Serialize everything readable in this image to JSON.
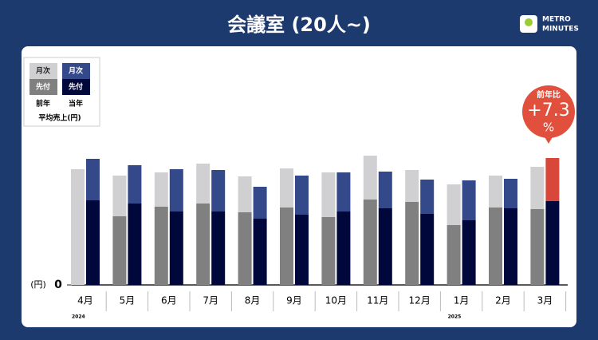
{
  "chart_data": {
    "type": "bar",
    "title": "会議室 (20人~)",
    "logo": [
      "METRO",
      "MINUTES"
    ],
    "legend": {
      "columns": [
        "前年",
        "当年"
      ],
      "title": "平均売上(円)"
    },
    "categories": [
      "4月",
      "5月",
      "6月",
      "7月",
      "8月",
      "9月",
      "10月",
      "11月",
      "12月",
      "1月",
      "2月",
      "3月"
    ],
    "year_labels": [
      "2024",
      null,
      null,
      null,
      null,
      null,
      null,
      null,
      null,
      "2025",
      null,
      null
    ],
    "y_unit": "(円)",
    "ylim": [
      0,
      170
    ],
    "yticks": [
      0
    ],
    "series": [
      {
        "name": "前年",
        "segments": [
          {
            "name": "先付",
            "color": "#808080",
            "values": [
              0,
              86,
              98,
              102,
              91,
              97,
              85,
              107,
              104,
              75,
              97,
              95
            ]
          },
          {
            "name": "月次",
            "color": "#d0d0d2",
            "values": [
              145,
              51,
              43,
              50,
              45,
              49,
              56,
              55,
              40,
              51,
              40,
              53
            ]
          }
        ]
      },
      {
        "name": "当年",
        "segments": [
          {
            "name": "先付",
            "color": "#00073a",
            "values": [
              106,
              102,
              92,
              92,
              83,
              88,
              92,
              96,
              89,
              81,
              96,
              105
            ]
          },
          {
            "name": "月次",
            "color": "#34498a",
            "values": [
              52,
              48,
              53,
              52,
              40,
              49,
              49,
              46,
              43,
              50,
              37,
              54
            ],
            "colors": [
              "#34498a",
              "#34498a",
              "#34498a",
              "#34498a",
              "#34498a",
              "#34498a",
              "#34498a",
              "#34498a",
              "#34498a",
              "#34498a",
              "#34498a",
              "#d9473a"
            ]
          }
        ]
      }
    ],
    "annotation": {
      "label": "前年比",
      "text": "+7.3",
      "unit": "%",
      "color": "#e0503c"
    }
  }
}
